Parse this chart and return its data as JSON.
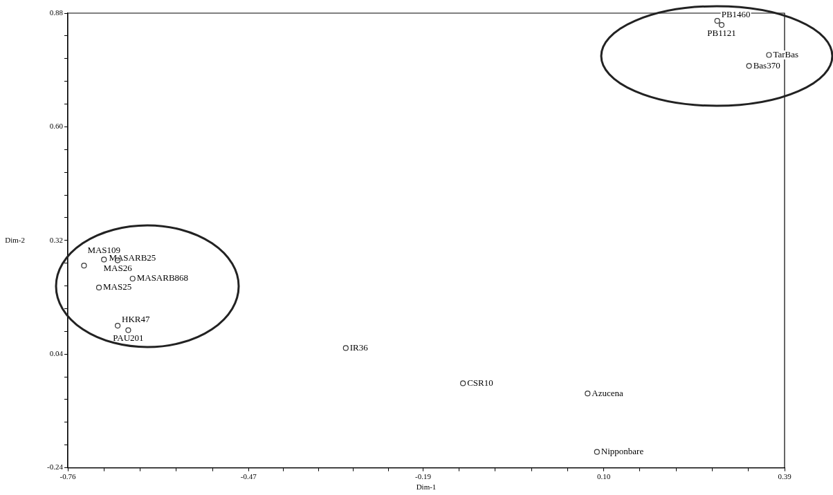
{
  "chart_data": {
    "type": "scatter",
    "xlabel": "Dim-1",
    "ylabel": "Dim-2",
    "marker": "circle",
    "grid": false,
    "legend": false,
    "xlim": [
      -0.76,
      0.39
    ],
    "ylim": [
      -0.24,
      0.88
    ],
    "xticks": [
      -0.76,
      {
        "value": -0.702,
        "label": null
      },
      {
        "value": -0.644,
        "label": null
      },
      {
        "value": -0.586,
        "label": null
      },
      {
        "value": -0.528,
        "label": null
      },
      -0.47,
      {
        "value": -0.414,
        "label": null
      },
      {
        "value": -0.358,
        "label": null
      },
      {
        "value": -0.302,
        "label": null
      },
      {
        "value": -0.246,
        "label": null
      },
      -0.19,
      {
        "value": -0.132,
        "label": null
      },
      {
        "value": -0.074,
        "label": null
      },
      {
        "value": -0.016,
        "label": null
      },
      {
        "value": 0.042,
        "label": null
      },
      {
        "value": 0.1,
        "label": "0.10"
      },
      {
        "value": 0.158,
        "label": null
      },
      {
        "value": 0.216,
        "label": null
      },
      {
        "value": 0.274,
        "label": null
      },
      {
        "value": 0.332,
        "label": null
      },
      0.39
    ],
    "yticks": [
      -0.24,
      {
        "value": -0.184,
        "label": null
      },
      {
        "value": -0.128,
        "label": null
      },
      {
        "value": -0.072,
        "label": null
      },
      {
        "value": -0.016,
        "label": null
      },
      0.04,
      {
        "value": 0.096,
        "label": null
      },
      {
        "value": 0.152,
        "label": null
      },
      {
        "value": 0.208,
        "label": null
      },
      {
        "value": 0.264,
        "label": null
      },
      0.32,
      {
        "value": 0.376,
        "label": null
      },
      {
        "value": 0.432,
        "label": null
      },
      {
        "value": 0.488,
        "label": null
      },
      {
        "value": 0.544,
        "label": null
      },
      {
        "value": 0.6,
        "label": "0.60"
      },
      {
        "value": 0.656,
        "label": null
      },
      {
        "value": 0.712,
        "label": null
      },
      {
        "value": 0.768,
        "label": null
      },
      {
        "value": 0.824,
        "label": null
      },
      0.88
    ],
    "series": [
      {
        "color": "#333333",
        "x": [
          -0.702,
          -0.68,
          -0.734,
          -0.656,
          -0.71,
          -0.68,
          -0.663,
          -0.314,
          -0.126,
          0.074,
          0.089,
          0.282,
          0.289,
          0.365,
          0.333
        ],
        "values": [
          0.273,
          0.271,
          0.258,
          0.226,
          0.204,
          0.11,
          0.099,
          0.055,
          -0.032,
          -0.057,
          -0.201,
          0.861,
          0.851,
          0.777,
          0.75
        ]
      }
    ],
    "annotations": [
      {
        "text": "MAS109",
        "x": -0.702,
        "y": 0.273
      },
      {
        "text": "MAS26",
        "x": -0.68,
        "y": 0.271
      },
      {
        "text": "MASARB25",
        "x": -0.734,
        "y": 0.258
      },
      {
        "text": "MASARB868",
        "x": -0.656,
        "y": 0.226
      },
      {
        "text": "MAS25",
        "x": -0.71,
        "y": 0.204
      },
      {
        "text": "HKR47",
        "x": -0.68,
        "y": 0.11
      },
      {
        "text": "PAU201",
        "x": -0.663,
        "y": 0.099
      },
      {
        "text": "IR36",
        "x": -0.314,
        "y": 0.055
      },
      {
        "text": "CSR10",
        "x": -0.126,
        "y": -0.032
      },
      {
        "text": "Azucena",
        "x": 0.074,
        "y": -0.057
      },
      {
        "text": "Nipponbare",
        "x": 0.089,
        "y": -0.201
      },
      {
        "text": "PB1460",
        "x": 0.282,
        "y": 0.861
      },
      {
        "text": "PB1121",
        "x": 0.289,
        "y": 0.851
      },
      {
        "text": "TarBas",
        "x": 0.365,
        "y": 0.777
      },
      {
        "text": "Bas370",
        "x": 0.333,
        "y": 0.75
      }
    ]
  }
}
